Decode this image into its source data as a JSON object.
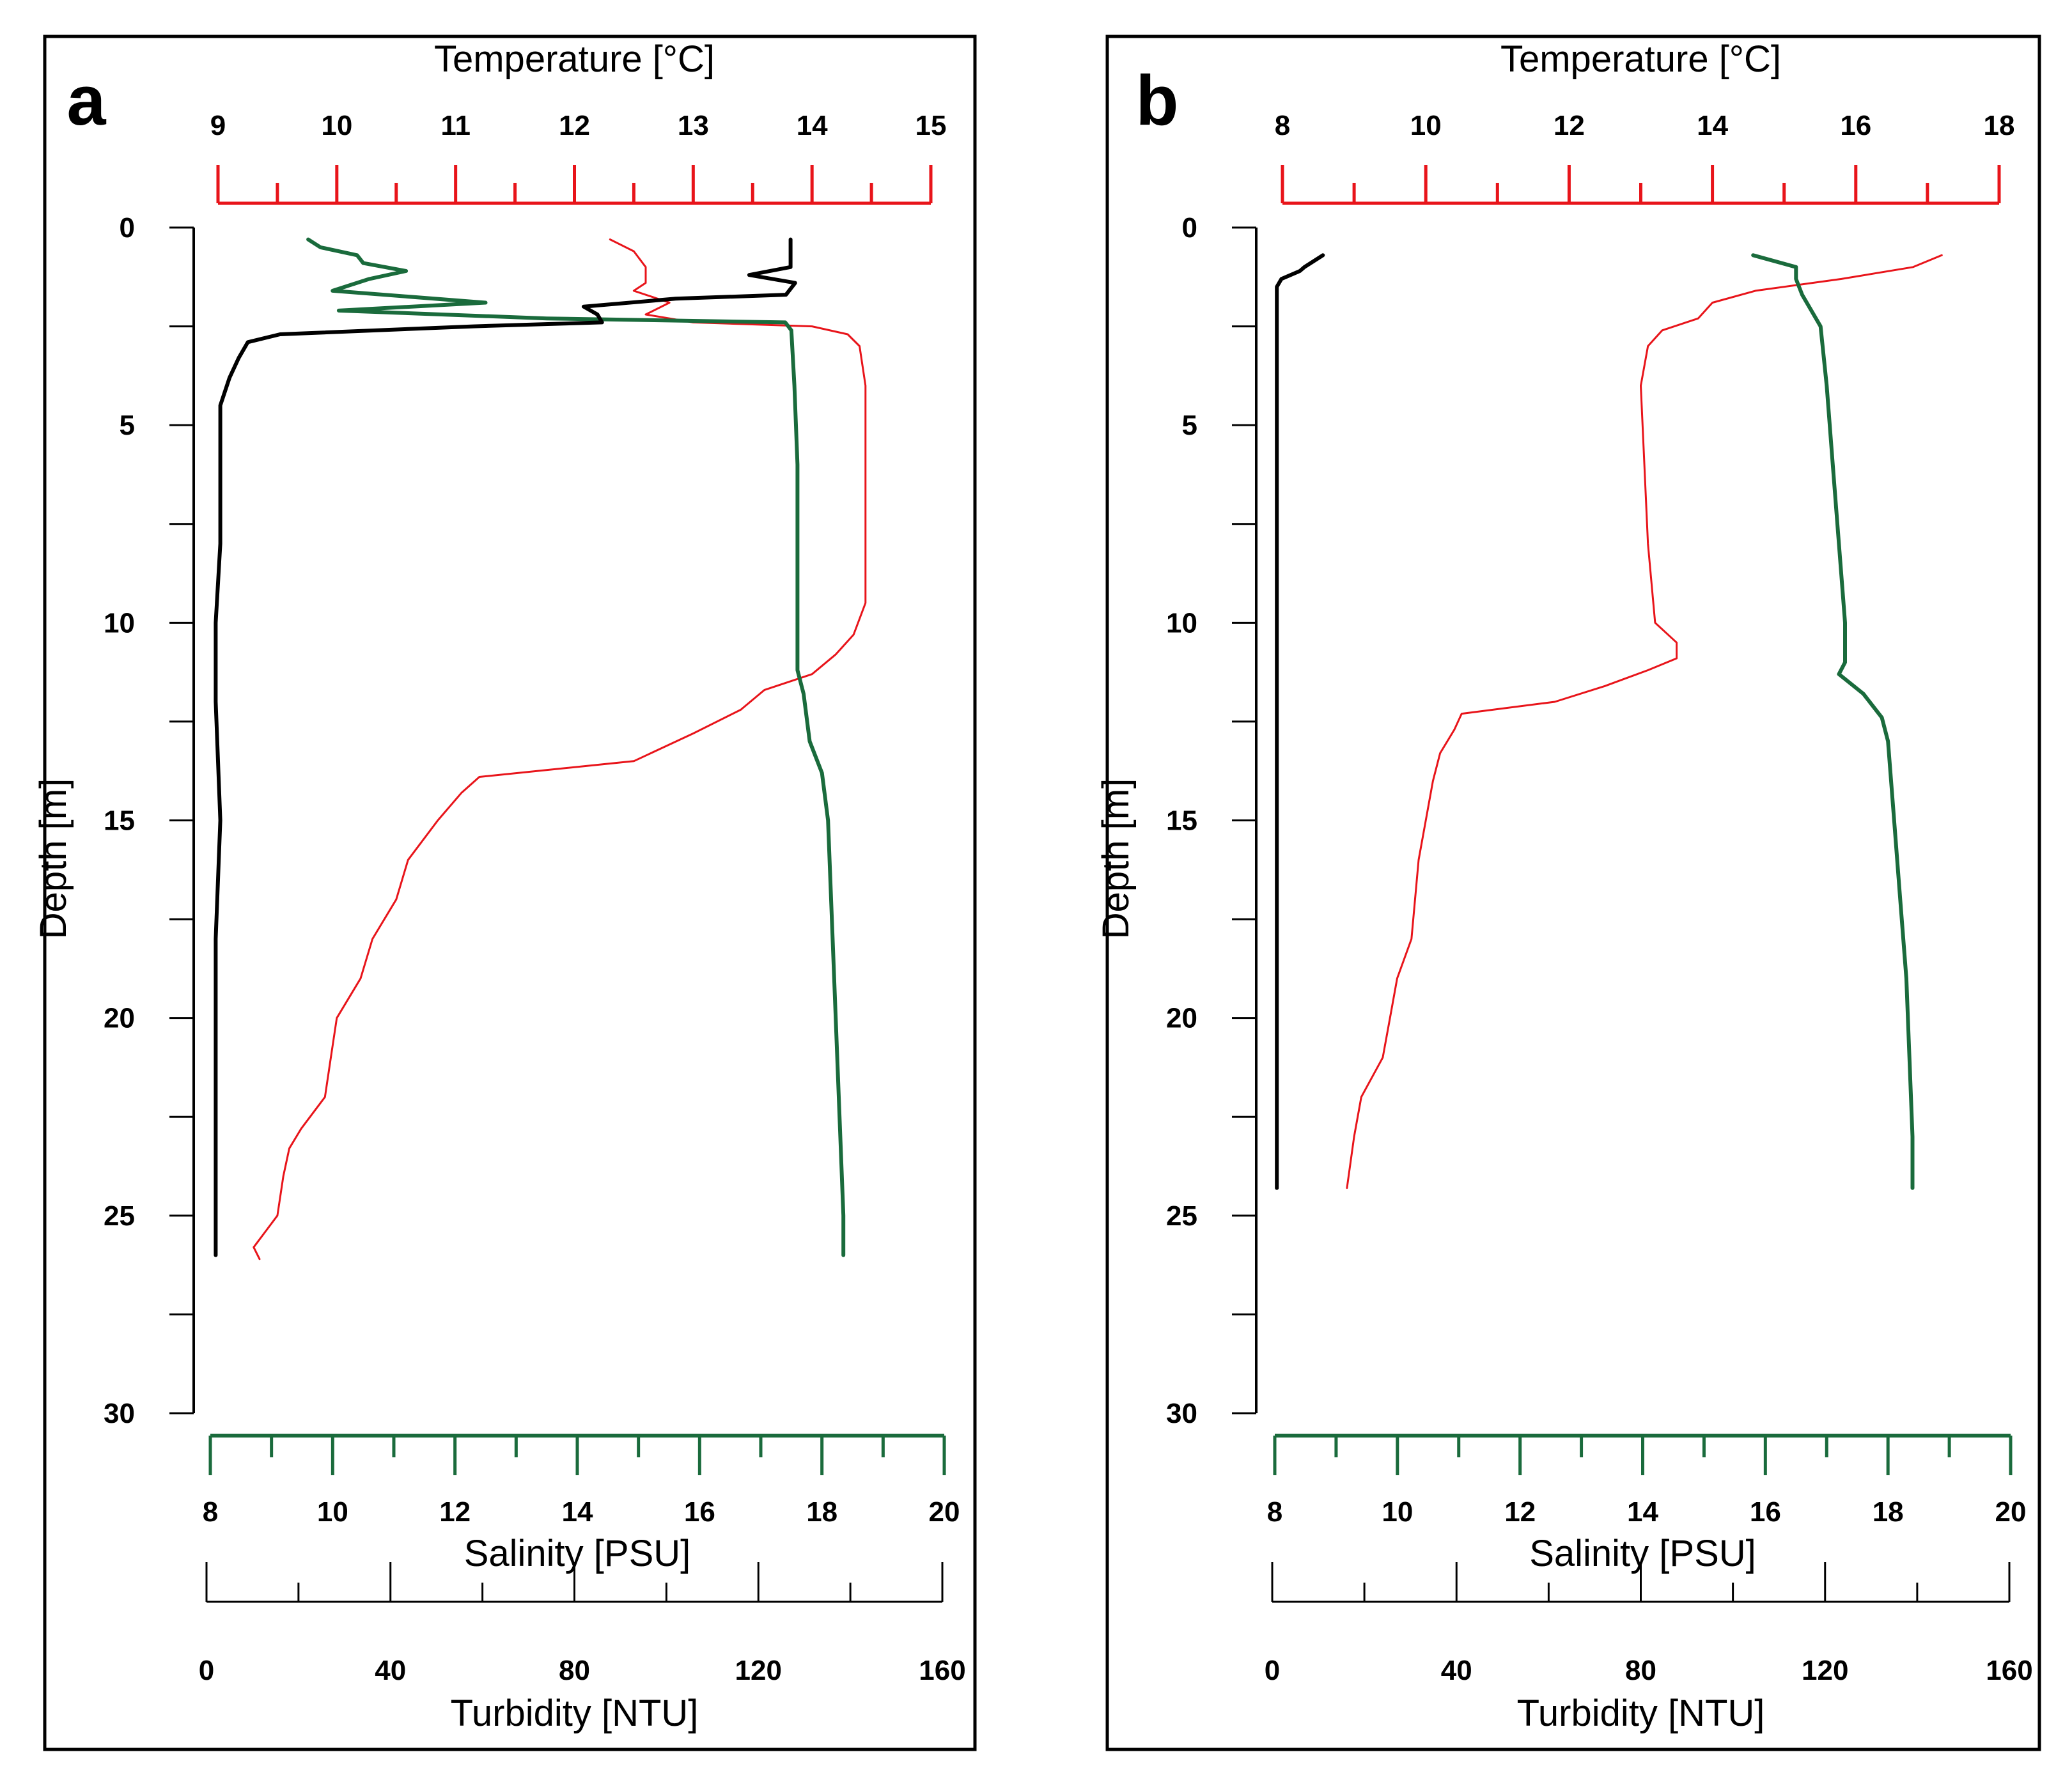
{
  "colors": {
    "temperature": "#e8141a",
    "salinity": "#1a6b3c",
    "turbidity": "#000000",
    "frame": "#000000"
  },
  "chart_data": [
    {
      "type": "line",
      "panel_label": "a",
      "depth_axis": {
        "label": "Depth [m]",
        "range": [
          0,
          30
        ],
        "ticks": [
          0,
          5,
          10,
          15,
          20,
          25,
          30
        ],
        "inverted": true
      },
      "temperature_axis": {
        "label": "Temperature [°C]",
        "range": [
          9,
          15
        ],
        "ticks": [
          9,
          10,
          11,
          12,
          13,
          14,
          15
        ]
      },
      "salinity_axis": {
        "label": "Salinity [PSU]",
        "range": [
          8,
          20
        ],
        "ticks": [
          8,
          10,
          12,
          14,
          16,
          18,
          20
        ]
      },
      "turbidity_axis": {
        "label": "Turbidity [NTU]",
        "range": [
          0,
          160
        ],
        "ticks": [
          0,
          40,
          80,
          120,
          160
        ]
      },
      "series": [
        {
          "quantity": "temperature",
          "depth": [
            0.3,
            0.6,
            1.0,
            1.4,
            1.6,
            1.9,
            2.2,
            2.4,
            2.5,
            2.7,
            3.0,
            4,
            6,
            8,
            9.5,
            10.3,
            10.8,
            11.3,
            11.7,
            12.2,
            12.8,
            13.5,
            13.9,
            14.3,
            15,
            16,
            17,
            18,
            19,
            20,
            21,
            22,
            22.8,
            23.3,
            24,
            25,
            25.4,
            25.8,
            26.1
          ],
          "values": [
            12.3,
            12.5,
            12.6,
            12.6,
            12.5,
            12.8,
            12.6,
            13.0,
            14.0,
            14.3,
            14.4,
            14.45,
            14.45,
            14.45,
            14.45,
            14.35,
            14.2,
            14.0,
            13.6,
            13.4,
            13.0,
            12.5,
            11.2,
            11.05,
            10.85,
            10.6,
            10.5,
            10.3,
            10.2,
            10.0,
            9.95,
            9.9,
            9.7,
            9.6,
            9.55,
            9.5,
            9.4,
            9.3,
            9.35
          ]
        },
        {
          "quantity": "salinity",
          "depth": [
            0.3,
            0.5,
            0.7,
            0.9,
            1.1,
            1.3,
            1.6,
            1.9,
            2.1,
            2.3,
            2.4,
            2.6,
            4,
            6,
            8,
            10,
            11.2,
            11.8,
            13.0,
            13.8,
            15,
            17,
            19,
            21,
            23,
            25,
            26.0
          ],
          "values": [
            9.6,
            9.8,
            10.4,
            10.5,
            11.2,
            10.6,
            10.0,
            12.5,
            10.1,
            13.5,
            17.4,
            17.5,
            17.55,
            17.6,
            17.6,
            17.6,
            17.6,
            17.7,
            17.8,
            18.0,
            18.1,
            18.15,
            18.2,
            18.25,
            18.3,
            18.35,
            18.35
          ]
        },
        {
          "quantity": "turbidity",
          "depth": [
            0.3,
            0.7,
            1.0,
            1.2,
            1.4,
            1.7,
            1.8,
            2.0,
            2.2,
            2.4,
            2.5,
            2.7,
            2.9,
            3.3,
            3.8,
            4.5,
            6,
            8,
            10,
            12,
            15,
            18,
            20,
            22,
            24,
            26.0
          ],
          "values": [
            127,
            127,
            127,
            118,
            128,
            126,
            102,
            82,
            85,
            86,
            58,
            16,
            9,
            7,
            5,
            3,
            3,
            3,
            2,
            2,
            3,
            2,
            2,
            2,
            2,
            2
          ]
        }
      ]
    },
    {
      "type": "line",
      "panel_label": "b",
      "depth_axis": {
        "label": "Depth [m]",
        "range": [
          0,
          30
        ],
        "ticks": [
          0,
          5,
          10,
          15,
          20,
          25,
          30
        ],
        "inverted": true
      },
      "temperature_axis": {
        "label": "Temperature [°C]",
        "range": [
          8,
          18
        ],
        "ticks": [
          8,
          10,
          12,
          14,
          16,
          18
        ]
      },
      "salinity_axis": {
        "label": "Salinity [PSU]",
        "range": [
          8,
          20
        ],
        "ticks": [
          8,
          10,
          12,
          14,
          16,
          18,
          20
        ]
      },
      "turbidity_axis": {
        "label": "Turbidity [NTU]",
        "range": [
          0,
          160
        ],
        "ticks": [
          0,
          40,
          80,
          120,
          160
        ]
      },
      "series": [
        {
          "quantity": "temperature",
          "depth": [
            0.7,
            1.0,
            1.3,
            1.6,
            1.9,
            2.3,
            2.6,
            3.0,
            4,
            6,
            8,
            10,
            10.5,
            10.9,
            11.2,
            11.6,
            12.0,
            12.3,
            12.7,
            13.3,
            14.0,
            16,
            18,
            19,
            20,
            21,
            22,
            23,
            24.3
          ],
          "values": [
            17.2,
            16.8,
            15.8,
            14.6,
            14.0,
            13.8,
            13.3,
            13.1,
            13.0,
            13.05,
            13.1,
            13.2,
            13.5,
            13.5,
            13.1,
            12.5,
            11.8,
            10.5,
            10.4,
            10.2,
            10.1,
            9.9,
            9.8,
            9.6,
            9.5,
            9.4,
            9.1,
            9.0,
            8.9
          ]
        },
        {
          "quantity": "salinity",
          "depth": [
            0.7,
            1.0,
            1.3,
            1.7,
            2.5,
            4,
            6,
            8,
            10,
            11.0,
            11.3,
            11.8,
            12.4,
            13,
            15,
            17,
            19,
            21,
            23,
            24.3
          ],
          "values": [
            15.8,
            16.5,
            16.5,
            16.6,
            16.9,
            17.0,
            17.1,
            17.2,
            17.3,
            17.3,
            17.2,
            17.6,
            17.9,
            18.0,
            18.1,
            18.2,
            18.3,
            18.35,
            18.4,
            18.4
          ]
        },
        {
          "quantity": "turbidity",
          "depth": [
            0.7,
            1.0,
            1.1,
            1.3,
            1.5,
            2,
            4,
            8,
            12,
            16,
            20,
            24.3
          ],
          "values": [
            11,
            7,
            6,
            2,
            1,
            1,
            1,
            1,
            1,
            1,
            1,
            1
          ]
        }
      ]
    }
  ]
}
